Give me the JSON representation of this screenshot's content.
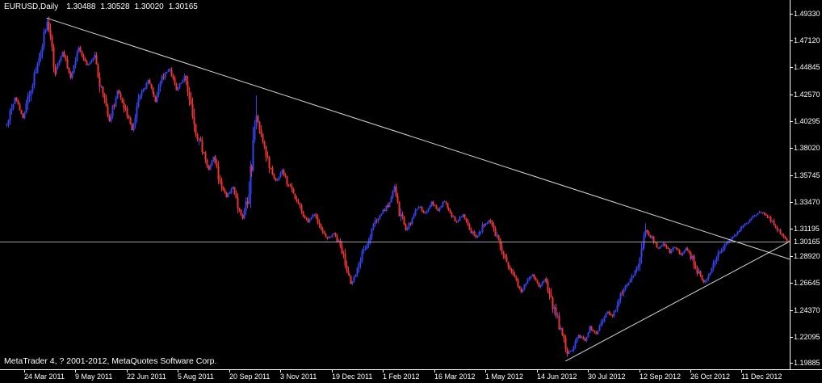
{
  "header": {
    "symbol_period": "EURUSD,Daily",
    "open": "1.30488",
    "high": "1.30528",
    "low": "1.30020",
    "close": "1.30165"
  },
  "footer": {
    "copyright": "MetaTrader 4, ? 2001-2012, MetaQuotes Software Corp."
  },
  "colors": {
    "background": "#000000",
    "foreground": "#ffffff",
    "bull": "#3344ee",
    "bear": "#ee3333",
    "trendline": "#d6d6d6",
    "price_line": "#9e9e9e"
  },
  "chart_data": {
    "type": "candlestick",
    "symbol": "EURUSD",
    "timeframe": "Daily",
    "bars_total": 489,
    "last_close": 1.30165,
    "current_price": "1.30165",
    "ylim": [
      1.1936,
      1.5052
    ],
    "y_ticks": [
      "1.49330",
      "1.47120",
      "1.44845",
      "1.42570",
      "1.40295",
      "1.38020",
      "1.35745",
      "1.33470",
      "1.31195",
      "1.28920",
      "1.26645",
      "1.24370",
      "1.22095",
      "1.19885"
    ],
    "x_ticks": [
      {
        "bar": 11,
        "label": "24 Mar 2011"
      },
      {
        "bar": 43,
        "label": "9 May 2011"
      },
      {
        "bar": 75,
        "label": "22 Jun 2011"
      },
      {
        "bar": 107,
        "label": "5 Aug 2011"
      },
      {
        "bar": 139,
        "label": "20 Sep 2011"
      },
      {
        "bar": 171,
        "label": "3 Nov 2011"
      },
      {
        "bar": 203,
        "label": "19 Dec 2011"
      },
      {
        "bar": 235,
        "label": "1 Feb 2012"
      },
      {
        "bar": 267,
        "label": "16 Mar 2012"
      },
      {
        "bar": 299,
        "label": "1 May 2012"
      },
      {
        "bar": 331,
        "label": "14 Jun 2012"
      },
      {
        "bar": 363,
        "label": "30 Jul 2012"
      },
      {
        "bar": 395,
        "label": "12 Sep 2012"
      },
      {
        "bar": 427,
        "label": "26 Oct 2012"
      },
      {
        "bar": 459,
        "label": "11 Dec 2012"
      }
    ],
    "price_path": [
      [
        0,
        1.3995
      ],
      [
        5,
        1.423
      ],
      [
        10,
        1.4065
      ],
      [
        15,
        1.43
      ],
      [
        20,
        1.4575
      ],
      [
        25,
        1.486
      ],
      [
        30,
        1.444
      ],
      [
        35,
        1.461
      ],
      [
        40,
        1.4405
      ],
      [
        45,
        1.4645
      ],
      [
        50,
        1.4505
      ],
      [
        55,
        1.4575
      ],
      [
        60,
        1.4235
      ],
      [
        64,
        1.403
      ],
      [
        69,
        1.43
      ],
      [
        74,
        1.413
      ],
      [
        78,
        1.396
      ],
      [
        83,
        1.4235
      ],
      [
        88,
        1.437
      ],
      [
        93,
        1.42
      ],
      [
        97,
        1.4405
      ],
      [
        102,
        1.4475
      ],
      [
        106,
        1.43
      ],
      [
        111,
        1.4405
      ],
      [
        114,
        1.4235
      ],
      [
        118,
        1.396
      ],
      [
        122,
        1.379
      ],
      [
        126,
        1.362
      ],
      [
        129,
        1.3725
      ],
      [
        133,
        1.352
      ],
      [
        137,
        1.338
      ],
      [
        141,
        1.3485
      ],
      [
        144,
        1.3315
      ],
      [
        147,
        1.321
      ],
      [
        151,
        1.345
      ],
      [
        156,
        1.41
      ],
      [
        160,
        1.3825
      ],
      [
        164,
        1.3655
      ],
      [
        168,
        1.352
      ],
      [
        172,
        1.362
      ],
      [
        176,
        1.3485
      ],
      [
        180,
        1.338
      ],
      [
        184,
        1.328
      ],
      [
        188,
        1.3175
      ],
      [
        192,
        1.3245
      ],
      [
        196,
        1.311
      ],
      [
        200,
        1.304
      ],
      [
        204,
        1.3075
      ],
      [
        208,
        1.297
      ],
      [
        212,
        1.28
      ],
      [
        215,
        1.2665
      ],
      [
        218,
        1.2735
      ],
      [
        222,
        1.2905
      ],
      [
        226,
        1.304
      ],
      [
        230,
        1.3175
      ],
      [
        234,
        1.3245
      ],
      [
        238,
        1.3315
      ],
      [
        242,
        1.347
      ],
      [
        245,
        1.328
      ],
      [
        249,
        1.311
      ],
      [
        253,
        1.321
      ],
      [
        257,
        1.3315
      ],
      [
        261,
        1.3245
      ],
      [
        265,
        1.3345
      ],
      [
        269,
        1.328
      ],
      [
        273,
        1.336
      ],
      [
        277,
        1.3265
      ],
      [
        281,
        1.3175
      ],
      [
        285,
        1.3245
      ],
      [
        289,
        1.313
      ],
      [
        293,
        1.304
      ],
      [
        297,
        1.314
      ],
      [
        301,
        1.3195
      ],
      [
        305,
        1.3075
      ],
      [
        309,
        1.294
      ],
      [
        313,
        1.28
      ],
      [
        317,
        1.27
      ],
      [
        321,
        1.2595
      ],
      [
        324,
        1.2665
      ],
      [
        328,
        1.2735
      ],
      [
        332,
        1.263
      ],
      [
        336,
        1.27
      ],
      [
        340,
        1.253
      ],
      [
        343,
        1.239
      ],
      [
        347,
        1.222
      ],
      [
        350,
        1.2065
      ],
      [
        354,
        1.212
      ],
      [
        357,
        1.222
      ],
      [
        361,
        1.2185
      ],
      [
        364,
        1.229
      ],
      [
        368,
        1.224
      ],
      [
        371,
        1.2335
      ],
      [
        375,
        1.2425
      ],
      [
        378,
        1.238
      ],
      [
        382,
        1.253
      ],
      [
        385,
        1.263
      ],
      [
        389,
        1.27
      ],
      [
        392,
        1.2765
      ],
      [
        396,
        1.294
      ],
      [
        399,
        1.311
      ],
      [
        403,
        1.304
      ],
      [
        407,
        1.295
      ],
      [
        410,
        1.3005
      ],
      [
        414,
        1.2925
      ],
      [
        417,
        1.297
      ],
      [
        421,
        1.2905
      ],
      [
        424,
        1.295
      ],
      [
        428,
        1.287
      ],
      [
        431,
        1.2765
      ],
      [
        435,
        1.2665
      ],
      [
        438,
        1.2735
      ],
      [
        442,
        1.2835
      ],
      [
        445,
        1.2925
      ],
      [
        449,
        1.3005
      ],
      [
        452,
        1.304
      ],
      [
        456,
        1.309
      ],
      [
        459,
        1.313
      ],
      [
        463,
        1.3175
      ],
      [
        466,
        1.3225
      ],
      [
        470,
        1.3265
      ],
      [
        473,
        1.3245
      ],
      [
        477,
        1.3195
      ],
      [
        480,
        1.314
      ],
      [
        484,
        1.306
      ],
      [
        488,
        1.30165
      ]
    ],
    "spikes": [
      {
        "bar": 25,
        "high": 1.49
      },
      {
        "bar": 156,
        "high": 1.4247
      },
      {
        "bar": 242,
        "high": 1.3486
      },
      {
        "bar": 350,
        "low": 1.2042
      },
      {
        "bar": 399,
        "high": 1.3169
      }
    ],
    "trendlines": [
      {
        "name": "descending",
        "from_bar": 25,
        "from_price": 1.49,
        "to_bar": 489,
        "to_price": 1.2865
      },
      {
        "name": "ascending",
        "from_bar": 349,
        "from_price": 1.2005,
        "to_bar": 489,
        "to_price": 1.3015
      }
    ]
  }
}
